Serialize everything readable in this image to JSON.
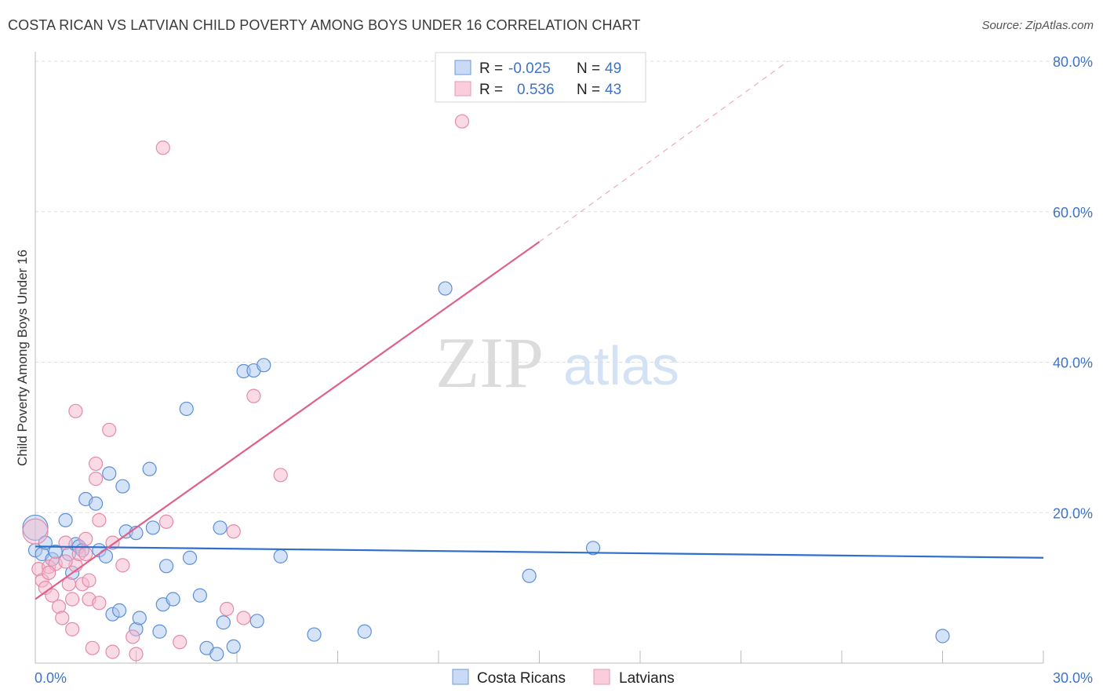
{
  "title": "COSTA RICAN VS LATVIAN CHILD POVERTY AMONG BOYS UNDER 16 CORRELATION CHART",
  "source": "Source: ZipAtlas.com",
  "watermark": {
    "zip": "ZIP",
    "atlas": "atlas"
  },
  "colors": {
    "blue_fill": "#aac8ef",
    "blue_stroke": "#5d8fd6",
    "blue_line": "#2f6fcc",
    "pink_fill": "#f6b8cb",
    "pink_stroke": "#e58aa8",
    "pink_line": "#e0608c",
    "tick_text": "#3f73c8",
    "grid": "#dddddd"
  },
  "legend": {
    "r_label": "R =",
    "n_label": "N =",
    "rows": [
      {
        "series": "Costa Ricans",
        "r": "-0.025",
        "n": "49"
      },
      {
        "series": "Latvians",
        "r": "0.536",
        "n": "43"
      }
    ]
  },
  "chart_data": {
    "type": "scatter",
    "title": "COSTA RICAN VS LATVIAN CHILD POVERTY AMONG BOYS UNDER 16 CORRELATION CHART",
    "xlabel": "",
    "ylabel": "Child Poverty Among Boys Under 16",
    "xlim": [
      0,
      30
    ],
    "ylim": [
      0,
      80
    ],
    "x_tick_labels": [
      "0.0%",
      "30.0%"
    ],
    "y_ticks": [
      20,
      40,
      60,
      80
    ],
    "y_tick_labels": [
      "20.0%",
      "40.0%",
      "60.0%",
      "80.0%"
    ],
    "series": [
      {
        "name": "Costa Ricans",
        "r": -0.025,
        "n": 49,
        "trend": {
          "x": [
            0,
            30
          ],
          "y": [
            15.5,
            14.0
          ]
        },
        "points": [
          [
            0.0,
            18.0,
            "large"
          ],
          [
            0.0,
            15.0
          ],
          [
            0.2,
            14.5
          ],
          [
            0.3,
            16.0
          ],
          [
            0.5,
            13.8
          ],
          [
            0.6,
            14.8
          ],
          [
            0.9,
            19.0
          ],
          [
            1.0,
            14.5
          ],
          [
            1.1,
            12.0
          ],
          [
            1.2,
            15.8
          ],
          [
            1.3,
            15.5
          ],
          [
            1.4,
            15.0
          ],
          [
            1.5,
            21.8
          ],
          [
            1.8,
            21.2
          ],
          [
            1.9,
            15.0
          ],
          [
            2.1,
            14.2
          ],
          [
            2.2,
            25.2
          ],
          [
            2.3,
            6.5
          ],
          [
            2.5,
            7.0
          ],
          [
            2.6,
            23.5
          ],
          [
            2.7,
            17.5
          ],
          [
            3.0,
            17.3
          ],
          [
            3.0,
            4.5
          ],
          [
            3.1,
            6.0
          ],
          [
            3.4,
            25.8
          ],
          [
            3.5,
            18.0
          ],
          [
            3.7,
            4.2
          ],
          [
            3.8,
            7.8
          ],
          [
            3.9,
            12.9
          ],
          [
            4.1,
            8.5
          ],
          [
            4.5,
            33.8
          ],
          [
            4.6,
            14.0
          ],
          [
            4.9,
            9.0
          ],
          [
            5.1,
            2.0
          ],
          [
            5.4,
            1.2
          ],
          [
            5.5,
            18.0
          ],
          [
            5.6,
            5.4
          ],
          [
            5.9,
            2.2
          ],
          [
            6.2,
            38.8
          ],
          [
            6.5,
            38.9
          ],
          [
            6.6,
            5.6
          ],
          [
            6.8,
            39.6
          ],
          [
            7.3,
            14.2
          ],
          [
            8.3,
            3.8
          ],
          [
            9.8,
            4.2
          ],
          [
            12.2,
            49.8
          ],
          [
            14.7,
            11.6
          ],
          [
            16.6,
            15.3
          ],
          [
            27.0,
            3.6
          ]
        ]
      },
      {
        "name": "Latvians",
        "r": 0.536,
        "n": 43,
        "trend": {
          "x": [
            0,
            15
          ],
          "y": [
            8.5,
            56.0
          ],
          "dashed_extension": {
            "x": [
              15,
              22.4
            ],
            "y": [
              56.0,
              80.0
            ]
          }
        },
        "points": [
          [
            0.0,
            17.5,
            "large"
          ],
          [
            0.1,
            12.5
          ],
          [
            0.2,
            11.0
          ],
          [
            0.3,
            10.0
          ],
          [
            0.4,
            12.8
          ],
          [
            0.5,
            9.0
          ],
          [
            0.6,
            13.2
          ],
          [
            0.7,
            7.5
          ],
          [
            0.8,
            6.0
          ],
          [
            0.9,
            16.0
          ],
          [
            1.0,
            10.5
          ],
          [
            1.1,
            4.5
          ],
          [
            1.1,
            8.5
          ],
          [
            1.2,
            13.0
          ],
          [
            1.2,
            33.5
          ],
          [
            1.3,
            14.5
          ],
          [
            1.4,
            10.5
          ],
          [
            1.5,
            16.5
          ],
          [
            1.5,
            14.5
          ],
          [
            1.6,
            11.0
          ],
          [
            1.6,
            8.5
          ],
          [
            1.7,
            2.0
          ],
          [
            1.8,
            26.5
          ],
          [
            1.8,
            24.5
          ],
          [
            1.9,
            19.0
          ],
          [
            1.9,
            8.0
          ],
          [
            2.2,
            31.0
          ],
          [
            2.3,
            1.5
          ],
          [
            2.3,
            16.0
          ],
          [
            2.6,
            13.0
          ],
          [
            2.9,
            3.5
          ],
          [
            3.0,
            1.2
          ],
          [
            3.8,
            68.5
          ],
          [
            3.9,
            18.8
          ],
          [
            4.3,
            2.8
          ],
          [
            5.7,
            7.2
          ],
          [
            5.9,
            17.5
          ],
          [
            6.2,
            6.0
          ],
          [
            6.5,
            35.5
          ],
          [
            7.3,
            25.0
          ],
          [
            12.7,
            72.0
          ],
          [
            0.4,
            12.0
          ],
          [
            0.9,
            13.5
          ]
        ]
      }
    ],
    "legend_position": "top-center"
  }
}
